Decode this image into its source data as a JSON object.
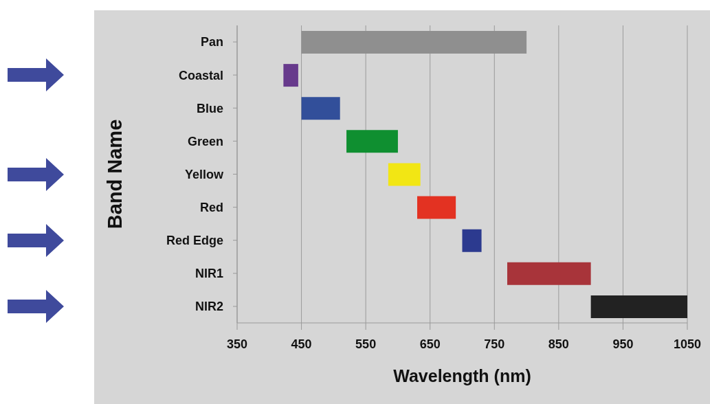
{
  "chart_data": {
    "type": "bar",
    "orientation": "horizontal",
    "xlabel": "Wavelength (nm)",
    "ylabel": "Band Name",
    "categories": [
      "Pan",
      "Coastal",
      "Blue",
      "Green",
      "Yellow",
      "Red",
      "Red Edge",
      "NIR1",
      "NIR2"
    ],
    "base": [
      450,
      422,
      450,
      520,
      585,
      630,
      700,
      770,
      900
    ],
    "values": [
      350,
      23,
      60,
      80,
      50,
      60,
      30,
      130,
      150
    ],
    "colors": [
      "#8f8f8f",
      "#673a8c",
      "#324f9a",
      "#0f8f30",
      "#f2e614",
      "#e33222",
      "#2c3a8f",
      "#a8343a",
      "#222222"
    ],
    "xlim": [
      350,
      1050
    ],
    "xticks": [
      350,
      450,
      550,
      650,
      750,
      850,
      950,
      1050
    ],
    "grid": "x",
    "legend": false
  }
}
